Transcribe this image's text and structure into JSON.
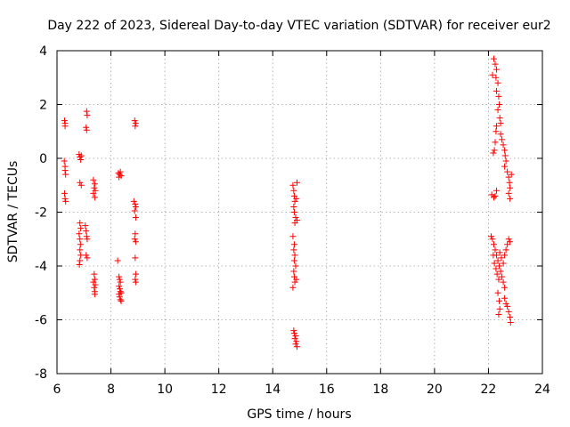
{
  "chart_data": {
    "type": "scatter",
    "title": "Day 222 of 2023, Sidereal Day-to-day VTEC variation (SDTVAR) for receiver eur2",
    "xlabel": "GPS time / hours",
    "ylabel": "SDTVAR / TECUs",
    "xlim": [
      6,
      24
    ],
    "ylim": [
      -8,
      4
    ],
    "xticks": [
      6,
      8,
      10,
      12,
      14,
      16,
      18,
      20,
      22,
      24
    ],
    "yticks": [
      -8,
      -6,
      -4,
      -2,
      0,
      2,
      4
    ],
    "grid": true,
    "marker": "+",
    "color": "#ff0000",
    "series": [
      {
        "name": "SDTVAR",
        "points": [
          [
            6.28,
            1.4
          ],
          [
            6.3,
            1.3
          ],
          [
            6.3,
            1.2
          ],
          [
            6.27,
            -0.1
          ],
          [
            6.3,
            -0.3
          ],
          [
            6.3,
            -0.45
          ],
          [
            6.32,
            -0.6
          ],
          [
            6.28,
            -1.3
          ],
          [
            6.3,
            -1.5
          ],
          [
            6.32,
            -1.6
          ],
          [
            6.82,
            0.15
          ],
          [
            6.85,
            0.05
          ],
          [
            6.88,
            -0.05
          ],
          [
            6.9,
            0.1
          ],
          [
            6.85,
            -0.9
          ],
          [
            6.9,
            -1.0
          ],
          [
            6.85,
            -2.4
          ],
          [
            6.88,
            -2.6
          ],
          [
            6.82,
            -2.8
          ],
          [
            6.85,
            -3.0
          ],
          [
            6.87,
            -3.2
          ],
          [
            6.85,
            -3.4
          ],
          [
            6.88,
            -3.6
          ],
          [
            6.85,
            -3.8
          ],
          [
            6.83,
            -3.95
          ],
          [
            7.1,
            1.75
          ],
          [
            7.12,
            1.6
          ],
          [
            7.08,
            1.15
          ],
          [
            7.1,
            1.05
          ],
          [
            7.05,
            -2.5
          ],
          [
            7.08,
            -2.7
          ],
          [
            7.1,
            -2.9
          ],
          [
            7.12,
            -3.0
          ],
          [
            7.08,
            -3.6
          ],
          [
            7.12,
            -3.7
          ],
          [
            7.35,
            -0.8
          ],
          [
            7.4,
            -0.95
          ],
          [
            7.38,
            -1.1
          ],
          [
            7.42,
            -1.2
          ],
          [
            7.35,
            -1.3
          ],
          [
            7.4,
            -1.45
          ],
          [
            7.38,
            -4.3
          ],
          [
            7.4,
            -4.5
          ],
          [
            7.35,
            -4.6
          ],
          [
            7.42,
            -4.7
          ],
          [
            7.38,
            -4.8
          ],
          [
            7.4,
            -4.95
          ],
          [
            7.4,
            -5.05
          ],
          [
            8.28,
            -0.55
          ],
          [
            8.32,
            -0.6
          ],
          [
            8.35,
            -0.5
          ],
          [
            8.38,
            -0.65
          ],
          [
            8.3,
            -0.7
          ],
          [
            8.25,
            -3.8
          ],
          [
            8.3,
            -4.4
          ],
          [
            8.32,
            -4.5
          ],
          [
            8.35,
            -4.6
          ],
          [
            8.3,
            -4.75
          ],
          [
            8.33,
            -4.85
          ],
          [
            8.35,
            -4.95
          ],
          [
            8.38,
            -5.0
          ],
          [
            8.3,
            -5.05
          ],
          [
            8.32,
            -5.15
          ],
          [
            8.35,
            -5.25
          ],
          [
            8.38,
            -5.3
          ],
          [
            8.88,
            1.4
          ],
          [
            8.92,
            1.3
          ],
          [
            8.9,
            1.2
          ],
          [
            8.85,
            -1.6
          ],
          [
            8.9,
            -1.7
          ],
          [
            8.92,
            -1.8
          ],
          [
            8.88,
            -1.95
          ],
          [
            8.92,
            -2.2
          ],
          [
            8.9,
            -2.8
          ],
          [
            8.88,
            -3.0
          ],
          [
            8.92,
            -3.1
          ],
          [
            8.9,
            -3.7
          ],
          [
            8.92,
            -4.3
          ],
          [
            8.9,
            -4.5
          ],
          [
            8.92,
            -4.6
          ],
          [
            14.75,
            -1.0
          ],
          [
            14.78,
            -1.2
          ],
          [
            14.8,
            -1.4
          ],
          [
            14.82,
            -1.6
          ],
          [
            14.78,
            -1.8
          ],
          [
            14.8,
            -2.0
          ],
          [
            14.85,
            -2.2
          ],
          [
            14.82,
            -2.4
          ],
          [
            14.75,
            -2.9
          ],
          [
            14.8,
            -3.2
          ],
          [
            14.78,
            -3.4
          ],
          [
            14.82,
            -3.6
          ],
          [
            14.8,
            -3.8
          ],
          [
            14.85,
            -4.0
          ],
          [
            14.78,
            -4.2
          ],
          [
            14.8,
            -4.4
          ],
          [
            14.82,
            -4.6
          ],
          [
            14.75,
            -4.8
          ],
          [
            14.9,
            -0.9
          ],
          [
            14.88,
            -1.5
          ],
          [
            14.9,
            -2.3
          ],
          [
            14.88,
            -4.5
          ],
          [
            14.78,
            -6.4
          ],
          [
            14.8,
            -6.5
          ],
          [
            14.85,
            -6.6
          ],
          [
            14.82,
            -6.7
          ],
          [
            14.88,
            -6.8
          ],
          [
            14.85,
            -6.9
          ],
          [
            14.9,
            -7.0
          ],
          [
            22.15,
            3.1
          ],
          [
            22.2,
            3.7
          ],
          [
            22.25,
            3.5
          ],
          [
            22.3,
            3.3
          ],
          [
            22.28,
            3.0
          ],
          [
            22.35,
            2.8
          ],
          [
            22.3,
            2.5
          ],
          [
            22.38,
            2.3
          ],
          [
            22.4,
            2.0
          ],
          [
            22.35,
            1.8
          ],
          [
            22.42,
            1.5
          ],
          [
            22.45,
            1.3
          ],
          [
            22.3,
            1.2
          ],
          [
            22.28,
            1.0
          ],
          [
            22.25,
            0.6
          ],
          [
            22.22,
            0.3
          ],
          [
            22.18,
            0.2
          ],
          [
            22.45,
            0.9
          ],
          [
            22.5,
            0.7
          ],
          [
            22.55,
            0.5
          ],
          [
            22.6,
            0.3
          ],
          [
            22.62,
            0.1
          ],
          [
            22.65,
            -0.1
          ],
          [
            22.6,
            -0.3
          ],
          [
            22.7,
            -0.5
          ],
          [
            22.75,
            -0.7
          ],
          [
            22.78,
            -0.9
          ],
          [
            22.8,
            -1.1
          ],
          [
            22.75,
            -1.3
          ],
          [
            22.8,
            -1.5
          ],
          [
            22.85,
            -0.6
          ],
          [
            22.12,
            -1.35
          ],
          [
            22.2,
            -1.45
          ],
          [
            22.25,
            -1.4
          ],
          [
            22.3,
            -1.2
          ],
          [
            22.1,
            -2.9
          ],
          [
            22.15,
            -3.0
          ],
          [
            22.2,
            -3.2
          ],
          [
            22.25,
            -3.4
          ],
          [
            22.3,
            -3.6
          ],
          [
            22.35,
            -3.8
          ],
          [
            22.4,
            -4.0
          ],
          [
            22.45,
            -4.2
          ],
          [
            22.5,
            -4.4
          ],
          [
            22.55,
            -4.6
          ],
          [
            22.6,
            -4.8
          ],
          [
            22.18,
            -3.6
          ],
          [
            22.22,
            -3.9
          ],
          [
            22.28,
            -4.1
          ],
          [
            22.32,
            -4.3
          ],
          [
            22.38,
            -4.5
          ],
          [
            22.42,
            -3.5
          ],
          [
            22.48,
            -3.7
          ],
          [
            22.55,
            -3.9
          ],
          [
            22.6,
            -3.6
          ],
          [
            22.65,
            -3.4
          ],
          [
            22.7,
            -3.2
          ],
          [
            22.75,
            -3.0
          ],
          [
            22.8,
            -3.1
          ],
          [
            22.35,
            -5.0
          ],
          [
            22.4,
            -5.3
          ],
          [
            22.42,
            -5.6
          ],
          [
            22.38,
            -5.8
          ],
          [
            22.6,
            -5.2
          ],
          [
            22.65,
            -5.4
          ],
          [
            22.7,
            -5.5
          ],
          [
            22.75,
            -5.7
          ],
          [
            22.8,
            -5.9
          ],
          [
            22.82,
            -6.1
          ]
        ]
      }
    ]
  }
}
